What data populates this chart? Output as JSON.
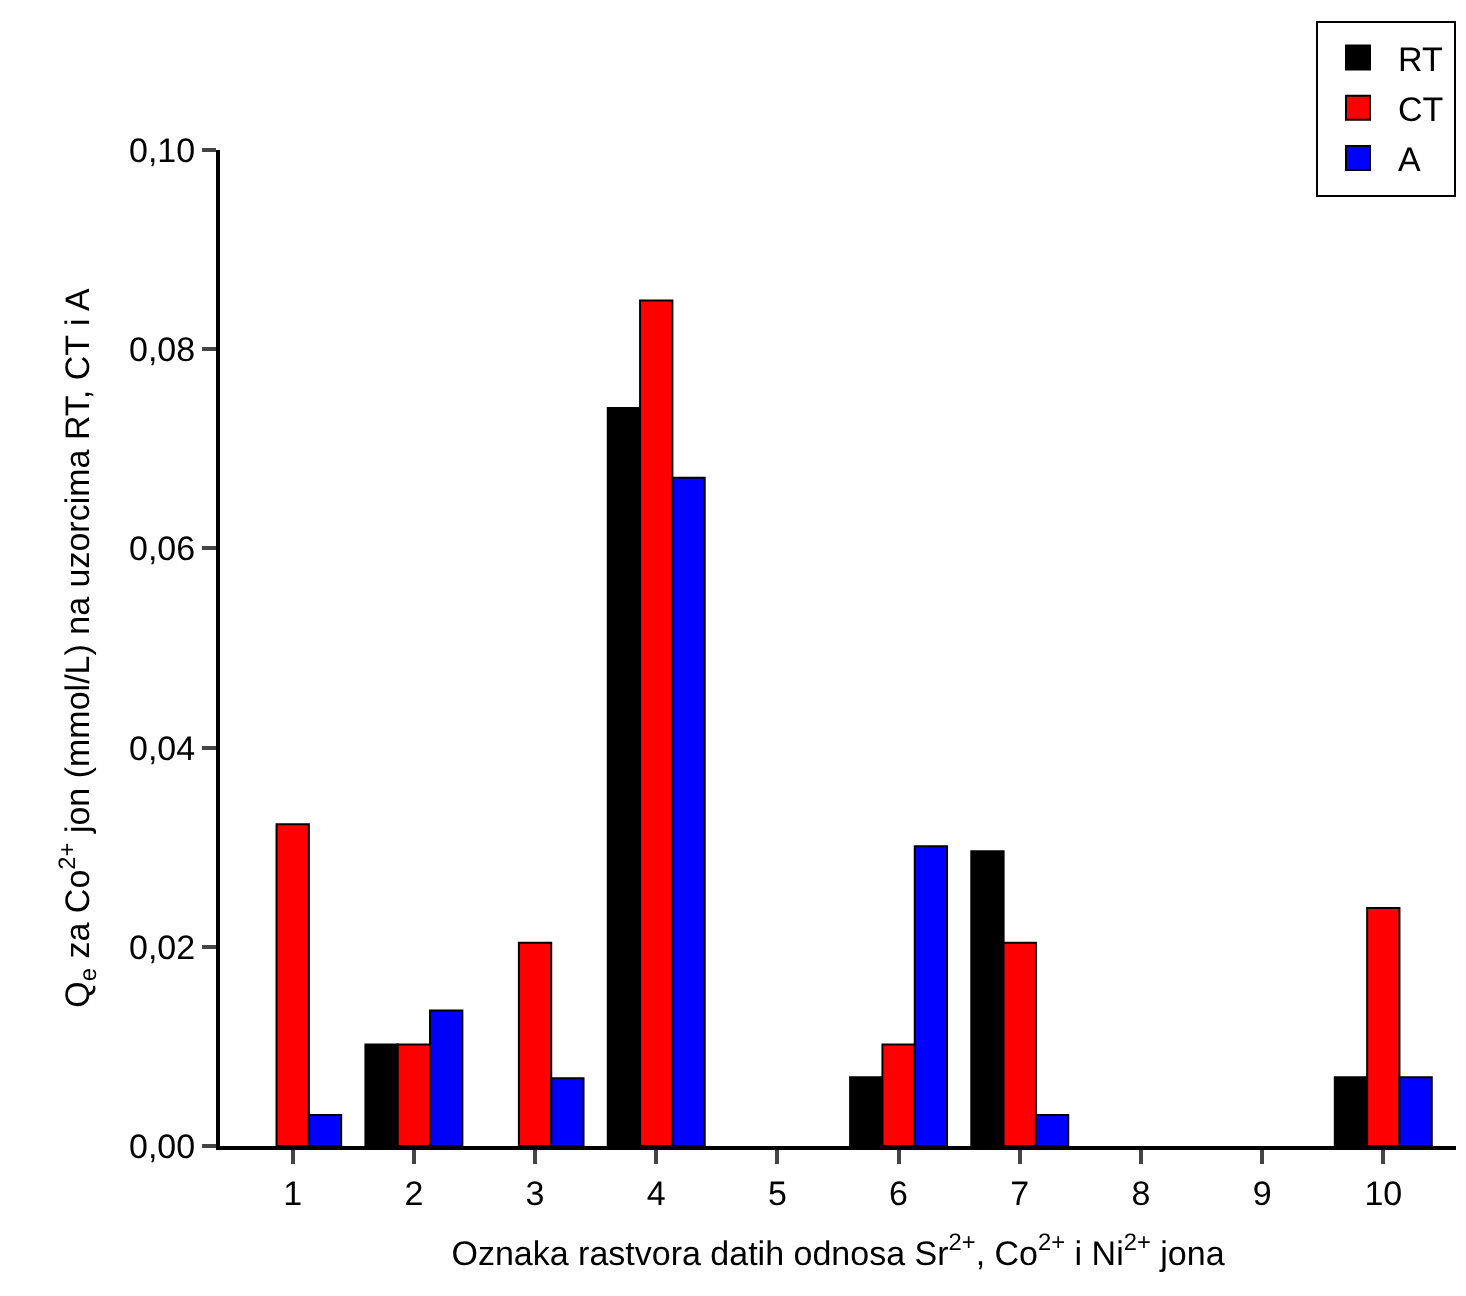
{
  "chart_data": {
    "type": "bar",
    "xlabel": "Oznaka rastvora datih odnosa Sr$^{2+}$, Co$^{2+}$ i Ni$^{2+}$ jona",
    "ylabel": "Q$_{e}$ za Co$^{2+}$ jon (mmol/L) na uzorcima RT, CT i A",
    "categories": [
      "1",
      "2",
      "3",
      "4",
      "5",
      "6",
      "7",
      "8",
      "9",
      "10"
    ],
    "series": [
      {
        "name": "RT",
        "color": "#000000",
        "values": [
          null,
          0.0102,
          null,
          0.0741,
          null,
          0.0069,
          0.0296,
          null,
          null,
          0.0069
        ]
      },
      {
        "name": "CT",
        "color": "#ff0000",
        "values": [
          0.0323,
          0.0102,
          0.0204,
          0.0849,
          null,
          0.0102,
          0.0204,
          null,
          null,
          0.0239
        ]
      },
      {
        "name": "A",
        "color": "#0000ff",
        "values": [
          0.0031,
          0.0136,
          0.0068,
          0.0671,
          null,
          0.0301,
          0.0031,
          null,
          null,
          0.0069
        ]
      }
    ],
    "ylim": [
      0,
      0.1
    ],
    "yticks": [
      {
        "value": 0,
        "label": "0,00"
      },
      {
        "value": 0.02,
        "label": "0,02"
      },
      {
        "value": 0.04,
        "label": "0,04"
      },
      {
        "value": 0.06,
        "label": "0,06"
      },
      {
        "value": 0.08,
        "label": "0,08"
      },
      {
        "value": 0.1,
        "label": "0,10"
      }
    ],
    "legend": "top right"
  }
}
